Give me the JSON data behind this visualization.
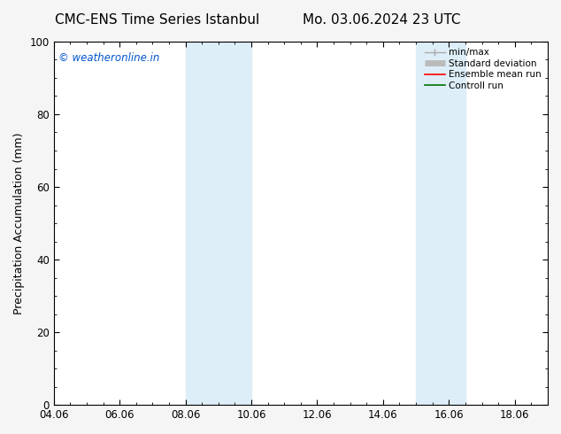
{
  "title_left": "CMC-ENS Time Series Istanbul",
  "title_right": "Mo. 03.06.2024 23 UTC",
  "ylabel": "Precipitation Accumulation (mm)",
  "watermark": "© weatheronline.in",
  "watermark_color": "#0055cc",
  "xlim_start": 4.06,
  "xlim_end": 19.06,
  "ylim": [
    0,
    100
  ],
  "yticks": [
    0,
    20,
    40,
    60,
    80,
    100
  ],
  "xtick_labels": [
    "04.06",
    "06.06",
    "08.06",
    "10.06",
    "12.06",
    "14.06",
    "16.06",
    "18.06"
  ],
  "xtick_positions": [
    4.06,
    6.06,
    8.06,
    10.06,
    12.06,
    14.06,
    16.06,
    18.06
  ],
  "shaded_regions": [
    {
      "x_start": 8.06,
      "x_end": 10.06,
      "color": "#ddeef8",
      "alpha": 1.0
    },
    {
      "x_start": 15.06,
      "x_end": 16.56,
      "color": "#ddeef8",
      "alpha": 1.0
    }
  ],
  "legend_entries": [
    {
      "label": "min/max",
      "color": "#aaaaaa",
      "lw": 1.0,
      "style": "minmax"
    },
    {
      "label": "Standard deviation",
      "color": "#bbbbbb",
      "lw": 5,
      "style": "stddev"
    },
    {
      "label": "Ensemble mean run",
      "color": "#ff0000",
      "lw": 1.2,
      "style": "line"
    },
    {
      "label": "Controll run",
      "color": "#007000",
      "lw": 1.2,
      "style": "line"
    }
  ],
  "background_color": "#f5f5f5",
  "plot_bg_color": "#ffffff",
  "spine_color": "#000000",
  "tick_color": "#000000",
  "grid": false,
  "title_fontsize": 11,
  "label_fontsize": 9,
  "tick_fontsize": 8.5,
  "legend_fontsize": 7.5
}
